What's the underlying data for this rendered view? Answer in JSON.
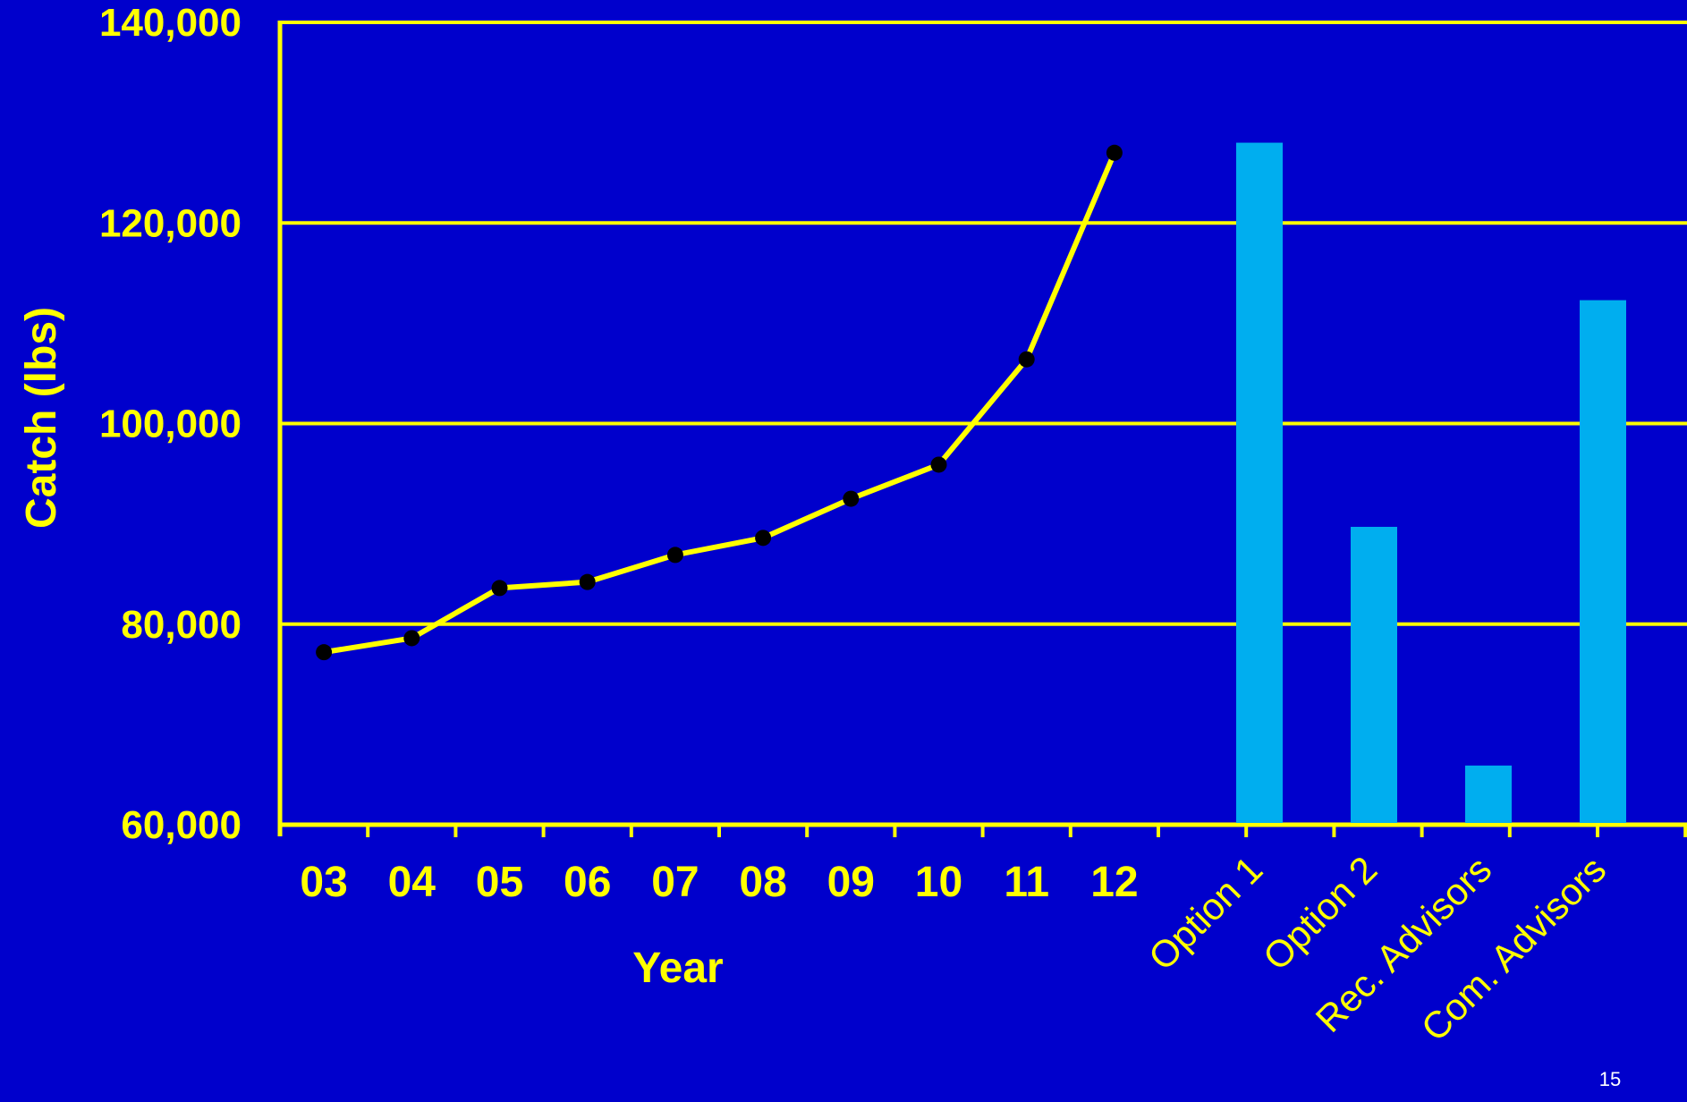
{
  "slide": {
    "page_number": "15"
  },
  "colors": {
    "background": "#0000CC",
    "axis": "#FFFF00",
    "line": "#FFFF00",
    "marker": "#000000",
    "bar": "#00AEEF",
    "text": "#FFFF00"
  },
  "chart_data": {
    "type": "line+bar",
    "title": "",
    "ylabel": "Catch (lbs)",
    "xlabel": "Year",
    "ylim": [
      60000,
      140000
    ],
    "yticks": [
      60000,
      80000,
      100000,
      120000,
      140000
    ],
    "ytick_labels": [
      "60,000",
      "80,000",
      "100,000",
      "120,000",
      "140,000"
    ],
    "grid": true,
    "line_series": {
      "x": [
        "03",
        "04",
        "05",
        "06",
        "07",
        "08",
        "09",
        "10",
        "11",
        "12"
      ],
      "values": [
        77200,
        78600,
        83600,
        84200,
        86900,
        88600,
        92500,
        95900,
        106400,
        127000
      ]
    },
    "bar_series": {
      "categories": [
        "Option 1",
        "Option 2",
        "Rec. Advisors",
        "Com. Advisors"
      ],
      "values": [
        128000,
        89700,
        65900,
        112300
      ]
    }
  }
}
